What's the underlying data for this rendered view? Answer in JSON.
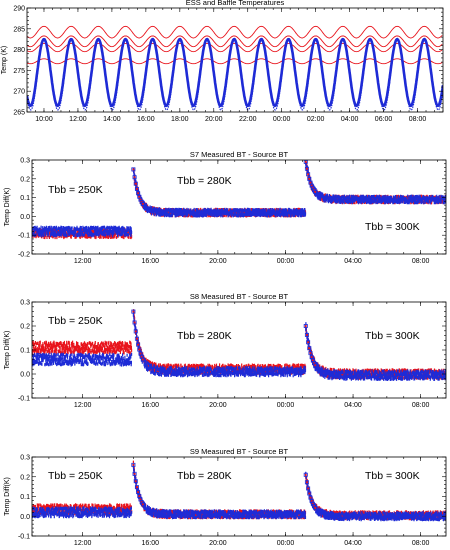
{
  "colors": {
    "red": "#e8141c",
    "blue": "#1e2bd6",
    "background": "#ffffff",
    "axis": "#000000"
  },
  "chart_data": [
    {
      "type": "line",
      "title": "ESS and Baffle Temperatures",
      "xlabel": "",
      "ylabel": "Temp (K)",
      "x_range_hours": [
        9.0,
        33.5
      ],
      "ylim": [
        265,
        290
      ],
      "yticks": [
        265,
        270,
        275,
        280,
        285,
        290
      ],
      "ytick_labels": [
        "265",
        "270",
        "275",
        "280",
        "285",
        "290"
      ],
      "xticks": [
        10,
        12,
        14,
        16,
        18,
        20,
        22,
        24,
        26,
        28,
        30,
        32
      ],
      "xtick_labels": [
        "10:00",
        "12:00",
        "14:00",
        "16:00",
        "18:00",
        "20:00",
        "22:00",
        "00:00",
        "02:00",
        "04:00",
        "06:00",
        "08:00"
      ],
      "series": [
        {
          "color": "red",
          "style": "line",
          "mean": 284.2,
          "amplitude": 1.4,
          "period_hours": 1.6
        },
        {
          "color": "red",
          "style": "line",
          "mean": 282.0,
          "amplitude": 1.3,
          "period_hours": 1.6
        },
        {
          "color": "red",
          "style": "line",
          "mean": 280.5,
          "amplitude": 1.0,
          "period_hours": 1.6
        },
        {
          "color": "red",
          "style": "line",
          "mean": 277.2,
          "amplitude": 0.6,
          "period_hours": 1.6
        },
        {
          "color": "blue",
          "style": "markers",
          "mean": 274.5,
          "amplitude": 8.0,
          "period_hours": 1.6
        }
      ],
      "annotations": []
    },
    {
      "type": "scatter",
      "title": "S7 Measured BT - Source BT",
      "xlabel": "",
      "ylabel": "Temp Diff(K)",
      "x_range_hours": [
        9.0,
        33.5
      ],
      "ylim": [
        -0.2,
        0.3
      ],
      "yticks": [
        -0.2,
        -0.1,
        0.0,
        0.1,
        0.2,
        0.3
      ],
      "ytick_labels": [
        "-0.2",
        "-0.1",
        "0.0",
        "0.1",
        "0.2",
        "0.3"
      ],
      "xticks": [
        12,
        16,
        20,
        24,
        28,
        32
      ],
      "xtick_labels": [
        "12:00",
        "16:00",
        "20:00",
        "00:00",
        "04:00",
        "08:00"
      ],
      "segments": [
        {
          "tbb_label": "Tbb = 250K",
          "x_start": 9.0,
          "x_end": 14.9,
          "red_level": -0.09,
          "blue_level": -0.08
        },
        {
          "tbb_label": "Tbb = 280K",
          "x_start": 15.0,
          "x_end": 25.2,
          "red_level": 0.02,
          "blue_level": 0.02,
          "spike_peak": 0.25
        },
        {
          "tbb_label": "Tbb = 300K",
          "x_start": 25.2,
          "x_end": 33.5,
          "red_level": 0.09,
          "blue_level": 0.09,
          "spike_peak": 0.29
        }
      ],
      "annotations": [
        "Tbb = 250K",
        "Tbb = 280K",
        "Tbb = 300K"
      ]
    },
    {
      "type": "scatter",
      "title": "S8 Measured BT - Source BT",
      "xlabel": "",
      "ylabel": "Temp Diff(K)",
      "x_range_hours": [
        9.0,
        33.5
      ],
      "ylim": [
        -0.1,
        0.3
      ],
      "yticks": [
        -0.1,
        0.0,
        0.1,
        0.2,
        0.3
      ],
      "ytick_labels": [
        "-0.1",
        "0.0",
        "0.1",
        "0.2",
        "0.3"
      ],
      "xticks": [
        12,
        16,
        20,
        24,
        28,
        32
      ],
      "xtick_labels": [
        "12:00",
        "16:00",
        "20:00",
        "00:00",
        "04:00",
        "08:00"
      ],
      "segments": [
        {
          "tbb_label": "Tbb = 250K",
          "x_start": 9.0,
          "x_end": 14.9,
          "red_level": 0.11,
          "blue_level": 0.06
        },
        {
          "tbb_label": "Tbb = 280K",
          "x_start": 15.0,
          "x_end": 25.2,
          "red_level": 0.02,
          "blue_level": 0.01,
          "spike_peak": 0.26
        },
        {
          "tbb_label": "Tbb = 300K",
          "x_start": 25.2,
          "x_end": 33.5,
          "red_level": 0.0,
          "blue_level": -0.005,
          "spike_peak": 0.2
        }
      ],
      "annotations": [
        "Tbb = 250K",
        "Tbb = 280K",
        "Tbb = 300K"
      ]
    },
    {
      "type": "scatter",
      "title": "S9 Measured BT - Source BT",
      "xlabel": "",
      "ylabel": "Temp Diff(K)",
      "x_range_hours": [
        9.0,
        33.5
      ],
      "ylim": [
        -0.1,
        0.3
      ],
      "yticks": [
        -0.1,
        0.0,
        0.1,
        0.2,
        0.3
      ],
      "ytick_labels": [
        "-0.1",
        "0.0",
        "0.1",
        "0.2",
        "0.3"
      ],
      "xticks": [
        12,
        16,
        20,
        24,
        28,
        32
      ],
      "xtick_labels": [
        "12:00",
        "16:00",
        "20:00",
        "00:00",
        "04:00",
        "08:00"
      ],
      "segments": [
        {
          "tbb_label": "Tbb = 250K",
          "x_start": 9.0,
          "x_end": 14.9,
          "red_level": 0.035,
          "blue_level": 0.02
        },
        {
          "tbb_label": "Tbb = 280K",
          "x_start": 15.0,
          "x_end": 25.2,
          "red_level": 0.01,
          "blue_level": 0.01,
          "spike_peak": 0.26
        },
        {
          "tbb_label": "Tbb = 300K",
          "x_start": 25.2,
          "x_end": 33.5,
          "red_level": 0.005,
          "blue_level": 0.0,
          "spike_peak": 0.21
        }
      ],
      "annotations": [
        "Tbb = 250K",
        "Tbb = 280K",
        "Tbb = 300K"
      ]
    }
  ]
}
